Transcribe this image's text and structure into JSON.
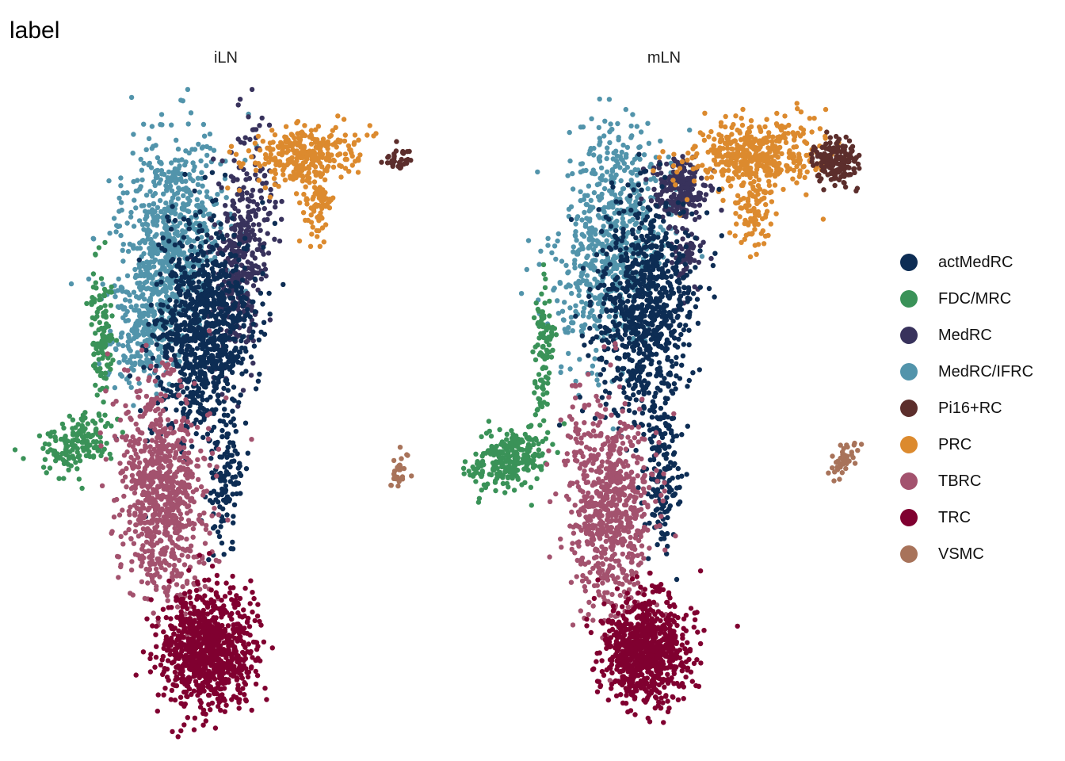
{
  "title": "label",
  "panels": [
    {
      "label": "iLN"
    },
    {
      "label": "mLN"
    }
  ],
  "legend": {
    "items": [
      {
        "label": "actMedRC",
        "color": "#0d2d54"
      },
      {
        "label": "FDC/MRC",
        "color": "#3a9258"
      },
      {
        "label": "MedRC",
        "color": "#38325c"
      },
      {
        "label": "MedRC/IFRC",
        "color": "#5294ab"
      },
      {
        "label": "Pi16+RC",
        "color": "#5c2e2c"
      },
      {
        "label": "PRC",
        "color": "#dc8a2e"
      },
      {
        "label": "TBRC",
        "color": "#a3526e"
      },
      {
        "label": "TRC",
        "color": "#800030"
      },
      {
        "label": "VSMC",
        "color": "#a8735a"
      }
    ]
  },
  "chart_data": {
    "type": "scatter",
    "title": "label",
    "facets": [
      "iLN",
      "mLN"
    ],
    "color_by": "label",
    "categories": [
      "actMedRC",
      "FDC/MRC",
      "MedRC",
      "MedRC/IFRC",
      "Pi16+RC",
      "PRC",
      "TBRC",
      "TRC",
      "VSMC"
    ],
    "axes_visible": false,
    "grid": false,
    "legend_position": "right"
  }
}
